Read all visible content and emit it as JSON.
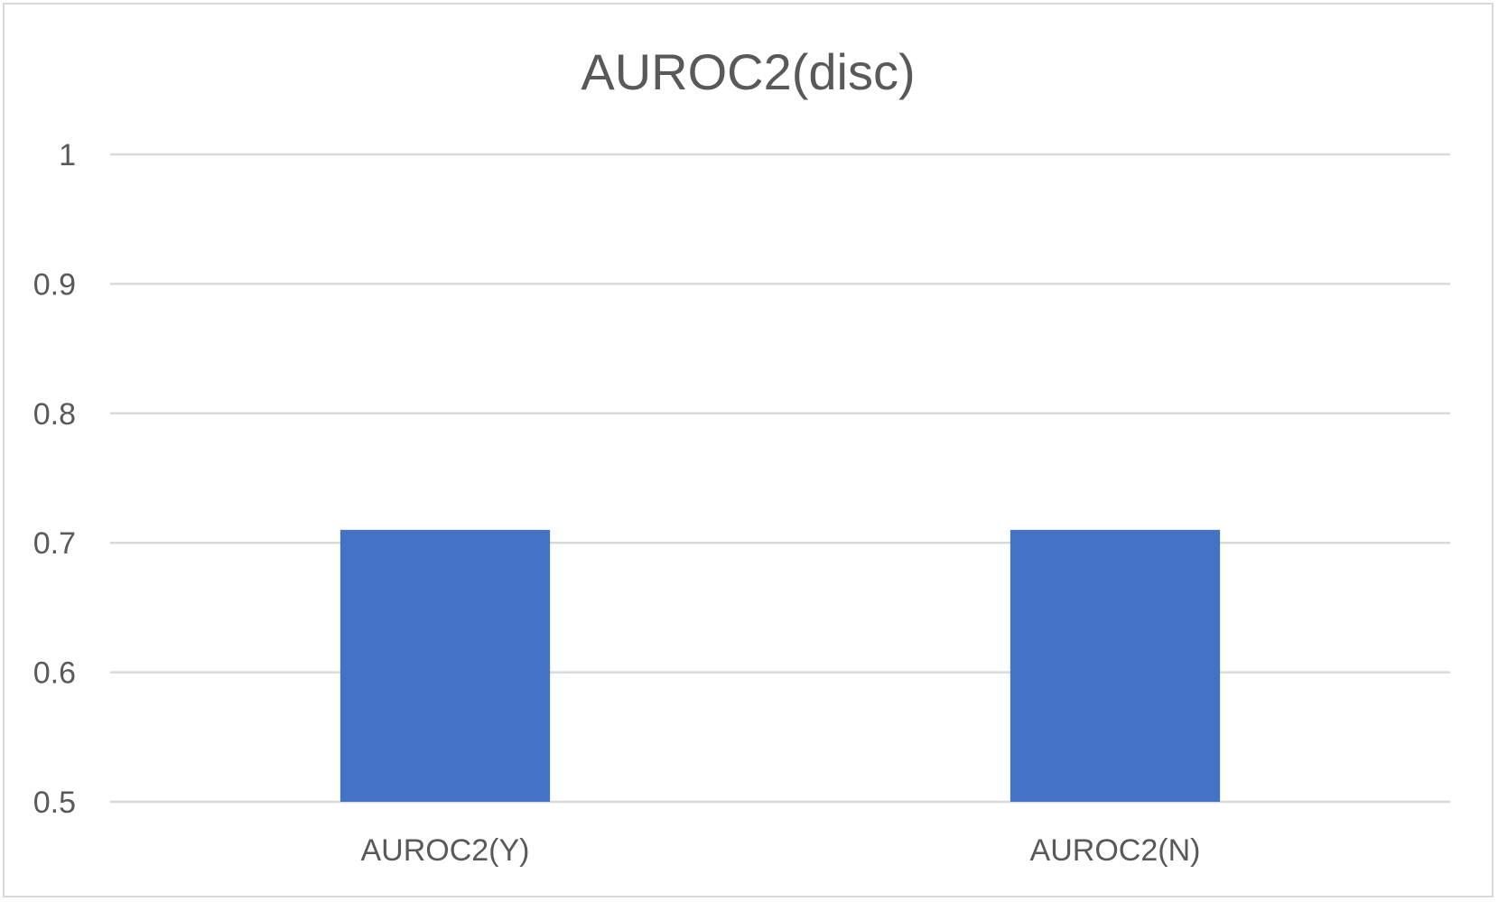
{
  "chart_data": {
    "type": "bar",
    "title": "AUROC2(disc)",
    "categories": [
      "AUROC2(Y)",
      "AUROC2(N)"
    ],
    "values": [
      0.71,
      0.71
    ],
    "ylim": [
      0.5,
      1
    ],
    "yticks": [
      "0.5",
      "0.6",
      "0.7",
      "0.8",
      "0.9",
      "1"
    ],
    "grid": true,
    "legend": "none",
    "bar_color": "#4472C4",
    "gridline_color": "#d9d9d9",
    "text_color": "#595959"
  }
}
